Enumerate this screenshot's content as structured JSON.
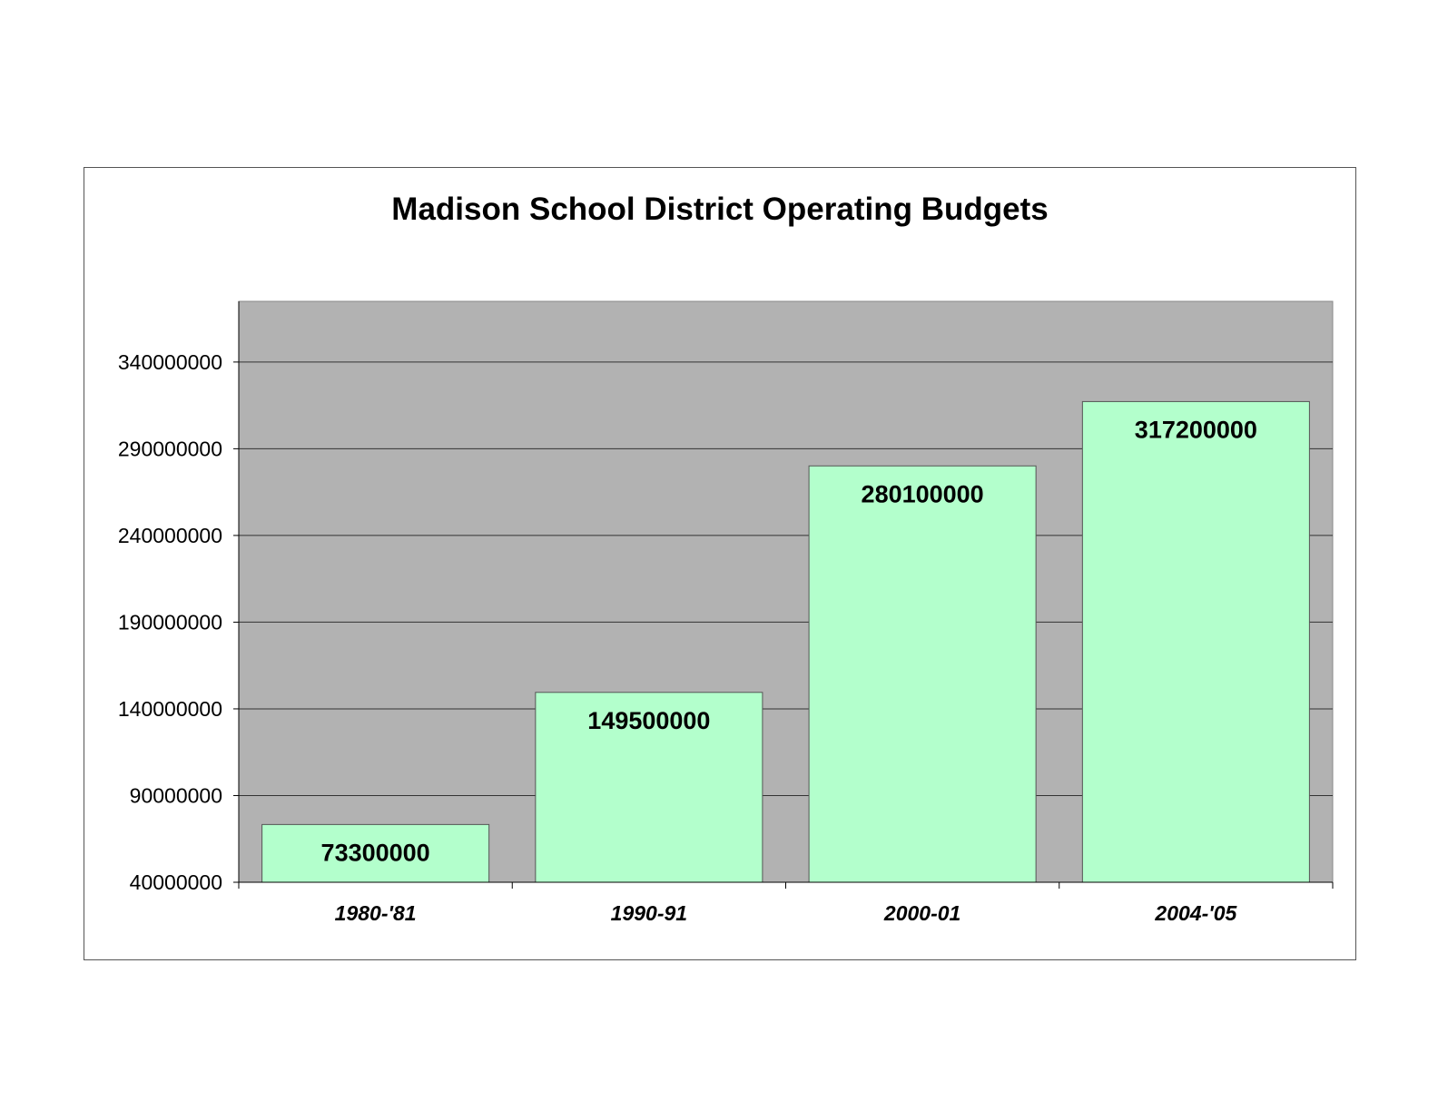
{
  "chart_data": {
    "type": "bar",
    "title": "Madison School District Operating Budgets",
    "xlabel": "",
    "ylabel": "",
    "categories": [
      "1980-'81",
      "1990-91",
      "2000-01",
      "2004-'05"
    ],
    "values": [
      73300000,
      149500000,
      280100000,
      317200000
    ],
    "data_labels": [
      "73300000",
      "149500000",
      "280100000",
      "317200000"
    ],
    "ylim": [
      40000000,
      375000000
    ],
    "yticks": [
      40000000,
      90000000,
      140000000,
      190000000,
      240000000,
      290000000,
      340000000
    ],
    "ytick_labels": [
      "40000000",
      "90000000",
      "140000000",
      "190000000",
      "240000000",
      "290000000",
      "340000000"
    ],
    "grid": true,
    "legend": "none",
    "colors": {
      "plot_background": "#b2b2b2",
      "bar_fill": "#b3ffcc",
      "bar_stroke": "#555555",
      "gridline": "#333333"
    }
  }
}
